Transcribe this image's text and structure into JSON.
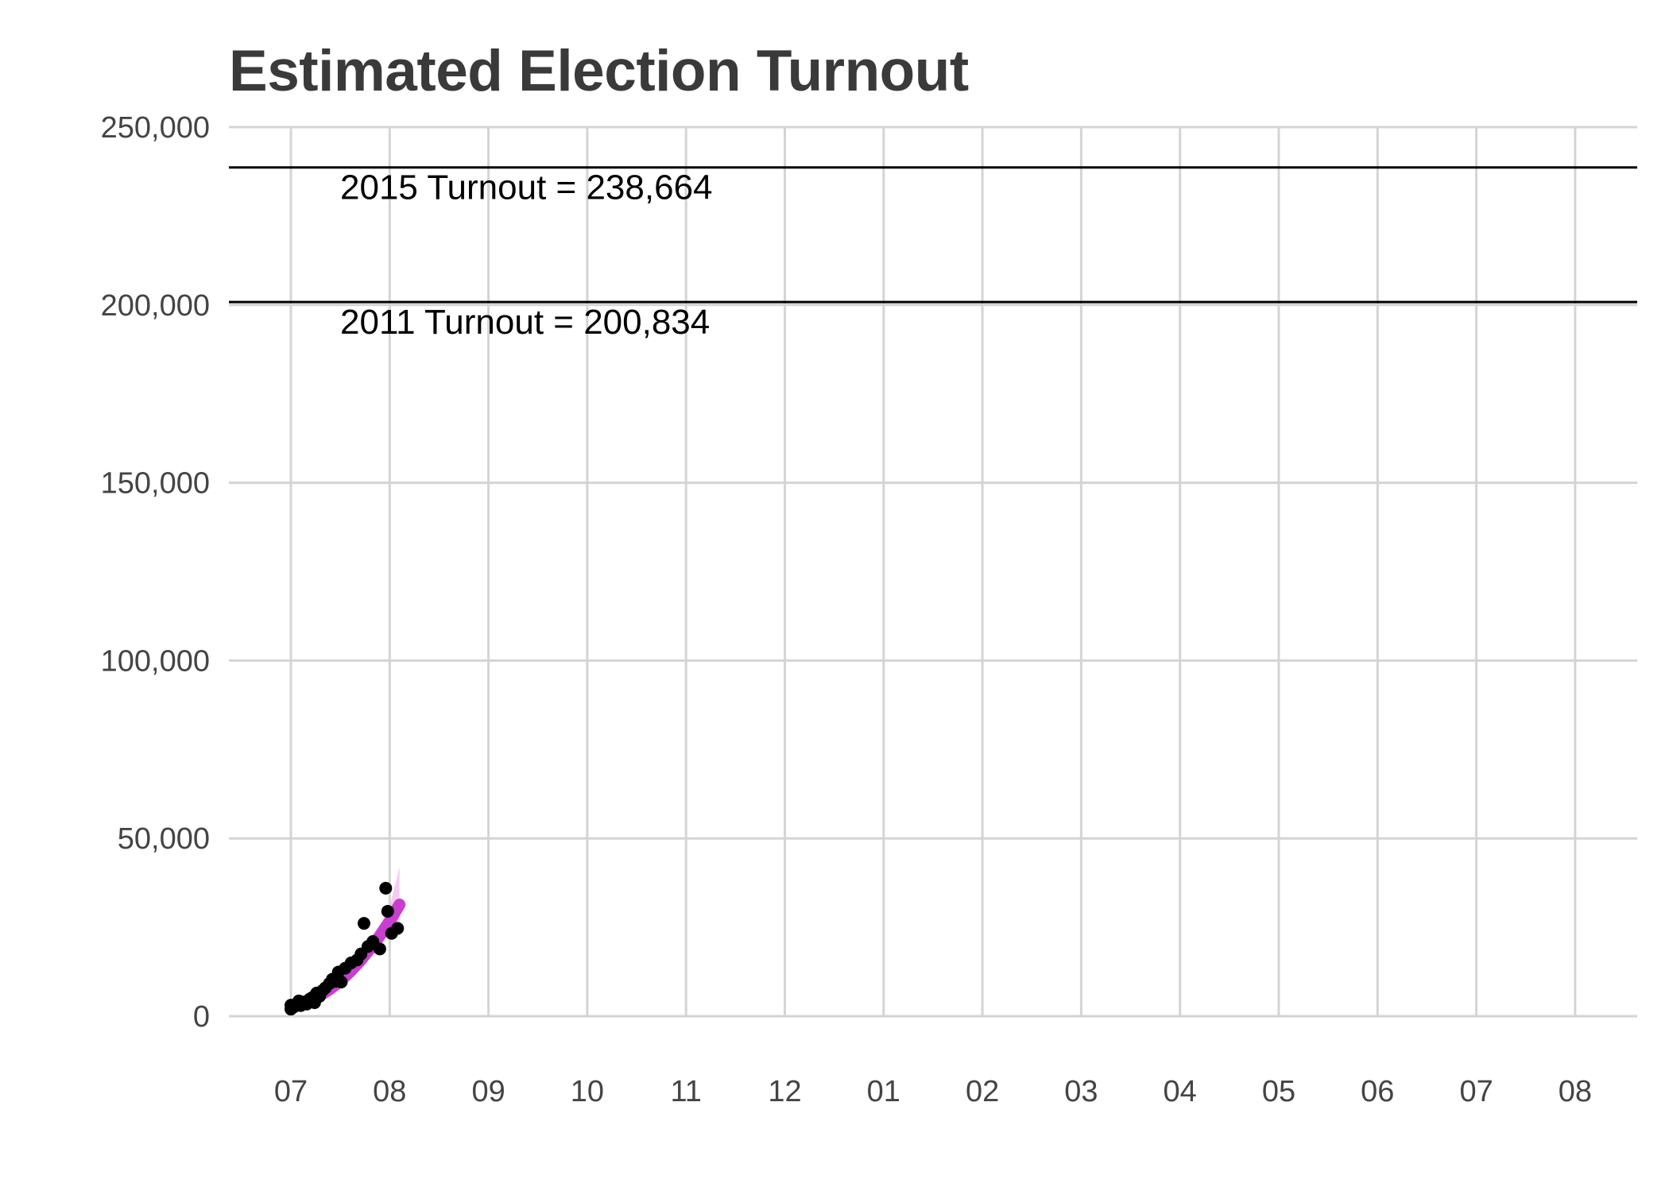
{
  "chart_data": {
    "type": "scatter",
    "title": "Estimated Election Turnout",
    "xlabel": "",
    "ylabel": "",
    "ylim": [
      0,
      250000
    ],
    "y_ticks": [
      0,
      50000,
      100000,
      150000,
      200000,
      250000
    ],
    "y_tick_labels": [
      "0",
      "50,000",
      "100,000",
      "150,000",
      "200,000",
      "250,000"
    ],
    "x_tick_labels": [
      "07",
      "08",
      "09",
      "10",
      "11",
      "12",
      "01",
      "02",
      "03",
      "04",
      "05",
      "06",
      "07",
      "08"
    ],
    "x_unit": "month",
    "grid": true,
    "reference_lines": [
      {
        "label": "2015 Turnout = 238,664",
        "value": 238664
      },
      {
        "label": "2011 Turnout = 200,834",
        "value": 200834
      }
    ],
    "points": [
      {
        "x": 0.0,
        "y": 2000
      },
      {
        "x": 0.0,
        "y": 3100
      },
      {
        "x": 0.03,
        "y": 2600
      },
      {
        "x": 0.06,
        "y": 3300
      },
      {
        "x": 0.08,
        "y": 4300
      },
      {
        "x": 0.1,
        "y": 3000
      },
      {
        "x": 0.13,
        "y": 4000
      },
      {
        "x": 0.16,
        "y": 3400
      },
      {
        "x": 0.19,
        "y": 4800
      },
      {
        "x": 0.22,
        "y": 5300
      },
      {
        "x": 0.24,
        "y": 3800
      },
      {
        "x": 0.26,
        "y": 6500
      },
      {
        "x": 0.29,
        "y": 5600
      },
      {
        "x": 0.32,
        "y": 7200
      },
      {
        "x": 0.35,
        "y": 8000
      },
      {
        "x": 0.39,
        "y": 9200
      },
      {
        "x": 0.42,
        "y": 10400
      },
      {
        "x": 0.45,
        "y": 9800
      },
      {
        "x": 0.48,
        "y": 12400
      },
      {
        "x": 0.51,
        "y": 9600
      },
      {
        "x": 0.55,
        "y": 13500
      },
      {
        "x": 0.61,
        "y": 15000
      },
      {
        "x": 0.67,
        "y": 15800
      },
      {
        "x": 0.71,
        "y": 17500
      },
      {
        "x": 0.74,
        "y": 26100
      },
      {
        "x": 0.78,
        "y": 19600
      },
      {
        "x": 0.83,
        "y": 21000
      },
      {
        "x": 0.9,
        "y": 18900
      },
      {
        "x": 0.96,
        "y": 36000
      },
      {
        "x": 0.98,
        "y": 29500
      },
      {
        "x": 1.02,
        "y": 23300
      },
      {
        "x": 1.08,
        "y": 24700
      }
    ],
    "trend": {
      "color": "#c83fcf",
      "band_color": "#f1b9ee",
      "x": [
        0.0,
        0.1,
        0.2,
        0.3,
        0.4,
        0.5,
        0.6,
        0.7,
        0.8,
        0.9,
        1.0,
        1.1
      ],
      "y": [
        2600,
        3400,
        4500,
        5900,
        7700,
        9900,
        12500,
        15500,
        18900,
        22600,
        26700,
        31400
      ],
      "lower": [
        2400,
        3200,
        4200,
        5500,
        7200,
        9300,
        11700,
        14400,
        17300,
        20300,
        23400,
        26500
      ],
      "upper": [
        2800,
        3600,
        4800,
        6300,
        8300,
        10600,
        13400,
        16700,
        20700,
        25300,
        30800,
        42000
      ]
    },
    "colors": {
      "points": "#000000",
      "grid": "#d4d4d4",
      "reference_line": "#000000",
      "title": "#3a3a3a"
    }
  }
}
